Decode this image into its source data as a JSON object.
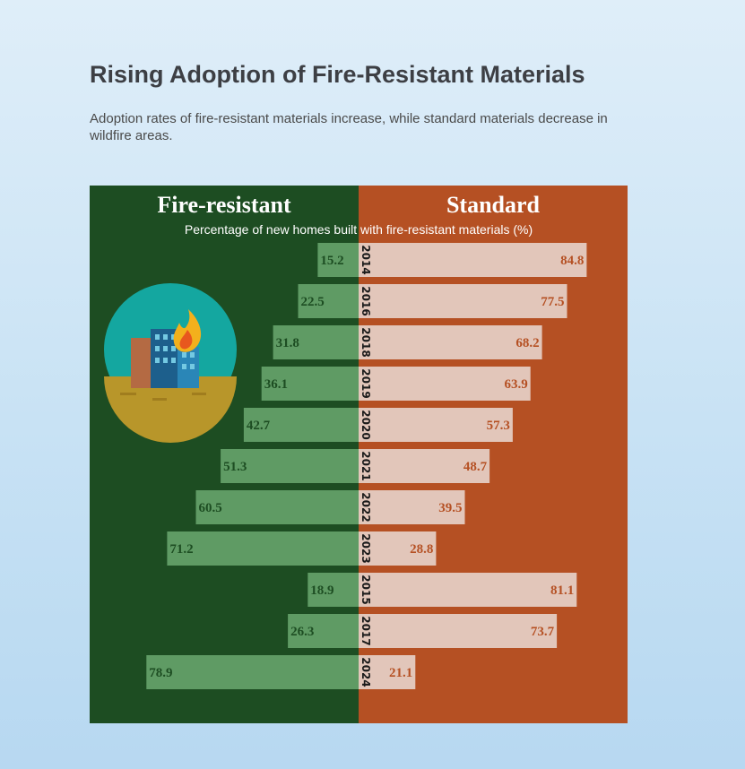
{
  "title": "Rising Adoption of Fire-Resistant Materials",
  "subtitle": "Adoption rates of fire-resistant materials increase, while standard materials decrease in wildfire areas.",
  "colors": {
    "fire_resistant_panel": "#1d4d22",
    "standard_panel": "#b55023",
    "fire_resistant_bar": "#5f9b64",
    "standard_bar": "#e2c6ba"
  },
  "illustration": {
    "icon": "burning-building-icon"
  },
  "chart_data": {
    "type": "bar",
    "orientation": "horizontal-diverging",
    "title": "",
    "axis_title": "Percentage of new homes built with fire-resistant materials (%)",
    "categories": [
      "2014",
      "2016",
      "2018",
      "2019",
      "2020",
      "2021",
      "2022",
      "2023",
      "2015",
      "2017",
      "2024"
    ],
    "series": [
      {
        "name": "Fire-resistant",
        "side": "left",
        "values": [
          15.2,
          22.5,
          31.8,
          36.1,
          42.7,
          51.3,
          60.5,
          71.2,
          18.9,
          26.3,
          78.9
        ]
      },
      {
        "name": "Standard",
        "side": "right",
        "values": [
          84.8,
          77.5,
          68.2,
          63.9,
          57.3,
          48.7,
          39.5,
          28.8,
          81.1,
          73.7,
          21.1
        ]
      }
    ],
    "xlim": [
      0,
      100
    ],
    "grid": false,
    "legend": "panel headers"
  }
}
